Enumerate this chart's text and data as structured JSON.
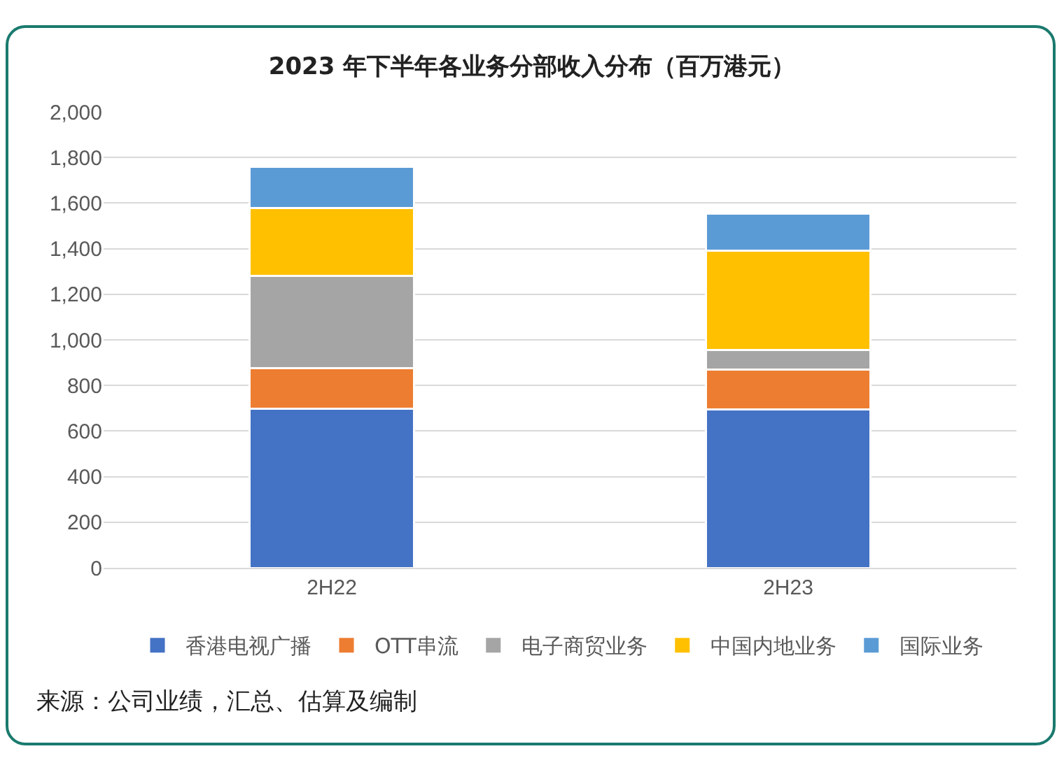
{
  "chart_data": {
    "type": "bar",
    "title": "2023 年下半年各业务分部收入分布（百万港元）",
    "categories": [
      "2H22",
      "2H23"
    ],
    "series": [
      {
        "name": "香港电视广播",
        "color": "#4472c4",
        "values": [
          698,
          696
        ]
      },
      {
        "name": "OTT串流",
        "color": "#ed7d31",
        "values": [
          179,
          174
        ]
      },
      {
        "name": "电子商贸业务",
        "color": "#a5a5a5",
        "values": [
          405,
          86
        ]
      },
      {
        "name": "中国内地业务",
        "color": "#ffc000",
        "values": [
          295,
          436
        ]
      },
      {
        "name": "国际业务",
        "color": "#5b9bd5",
        "values": [
          181,
          161
        ]
      }
    ],
    "stacked": true,
    "ylim": [
      0,
      2000
    ],
    "yticks": [
      {
        "value": 0,
        "label": "0"
      },
      {
        "value": 200,
        "label": "200"
      },
      {
        "value": 400,
        "label": "400"
      },
      {
        "value": 600,
        "label": "600"
      },
      {
        "value": 800,
        "label": "800"
      },
      {
        "value": 1000,
        "label": "1,000"
      },
      {
        "value": 1200,
        "label": "1,200"
      },
      {
        "value": 1400,
        "label": "1,400"
      },
      {
        "value": 1600,
        "label": "1,600"
      },
      {
        "value": 1800,
        "label": "1,800"
      },
      {
        "value": 2000,
        "label": "2,000"
      }
    ],
    "grid": "y",
    "legend": "bottom",
    "annotations": [
      "来源：公司业绩，汇总、估算及编制"
    ]
  }
}
